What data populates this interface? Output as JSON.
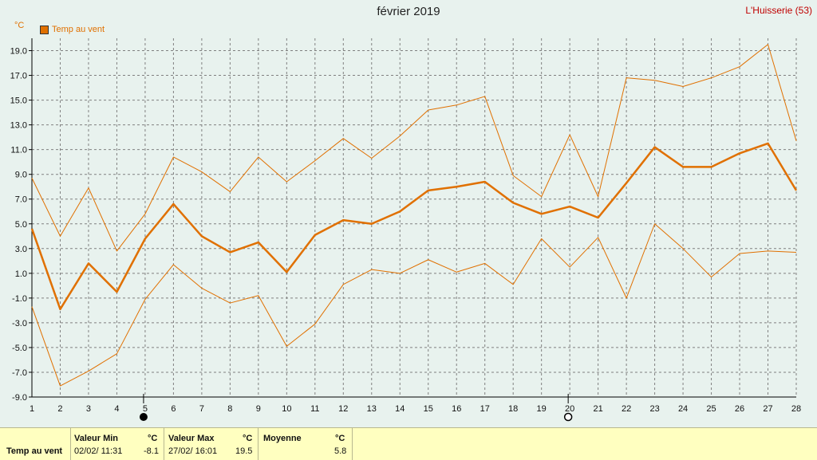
{
  "header": {
    "title": "février 2019",
    "station": "L'Huisserie (53)",
    "unit": "°C",
    "legend_label": "Temp au vent"
  },
  "colors": {
    "series": "#e07000",
    "grid": "#808080",
    "station": "#c00000",
    "stats_bg": "#ffffc0"
  },
  "moon_phases": [
    {
      "day": 5,
      "icon": "new-moon-icon"
    },
    {
      "day": 20,
      "icon": "full-moon-icon"
    }
  ],
  "chart_data": {
    "type": "line",
    "title": "février 2019",
    "x": [
      1,
      2,
      3,
      4,
      5,
      6,
      7,
      8,
      9,
      10,
      11,
      12,
      13,
      14,
      15,
      16,
      17,
      18,
      19,
      20,
      21,
      22,
      23,
      24,
      25,
      26,
      27,
      28
    ],
    "xlim": [
      1,
      28
    ],
    "ylim": [
      -9,
      20
    ],
    "yticks": [
      "19.0",
      "17.0",
      "15.0",
      "13.0",
      "11.0",
      "9.0",
      "7.0",
      "5.0",
      "3.0",
      "1.0",
      "-1.0",
      "-3.0",
      "-5.0",
      "-7.0",
      "-9.0"
    ],
    "ylabel": "°C",
    "grid": true,
    "legend": "top-left",
    "series": [
      {
        "name": "Temp au vent",
        "role": "mean",
        "values": [
          4.6,
          -1.9,
          1.8,
          -0.5,
          3.8,
          6.6,
          4.0,
          2.7,
          3.5,
          1.1,
          4.1,
          5.3,
          5.0,
          6.0,
          7.7,
          8.0,
          8.4,
          6.7,
          5.8,
          6.4,
          5.5,
          8.3,
          11.2,
          9.6,
          9.6,
          10.7,
          11.5,
          7.7
        ]
      },
      {
        "role": "max",
        "values": [
          8.7,
          4.0,
          7.9,
          2.8,
          5.8,
          10.4,
          9.2,
          7.6,
          10.4,
          8.4,
          10.1,
          11.9,
          10.3,
          12.1,
          14.2,
          14.6,
          15.3,
          8.9,
          7.2,
          12.2,
          7.2,
          16.8,
          16.6,
          16.1,
          16.8,
          17.7,
          19.5,
          11.7
        ]
      },
      {
        "role": "min",
        "values": [
          -1.7,
          -8.1,
          -6.9,
          -5.5,
          -1.1,
          1.7,
          -0.2,
          -1.4,
          -0.8,
          -4.9,
          -3.1,
          0.1,
          1.3,
          1.0,
          2.1,
          1.1,
          1.8,
          0.1,
          3.8,
          1.5,
          3.9,
          -1.0,
          5.0,
          3.0,
          0.7,
          2.6,
          2.8,
          2.7
        ]
      }
    ]
  },
  "stats": {
    "row_label": "Temp au vent",
    "min_label": "Valeur Min",
    "min_unit": "°C",
    "min_date": "02/02/  11:31",
    "min_value": "-8.1",
    "max_label": "Valeur Max",
    "max_unit": "°C",
    "max_date": "27/02/  16:01",
    "max_value": "19.5",
    "mean_label": "Moyenne",
    "mean_unit": "°C",
    "mean_value": "5.8"
  }
}
